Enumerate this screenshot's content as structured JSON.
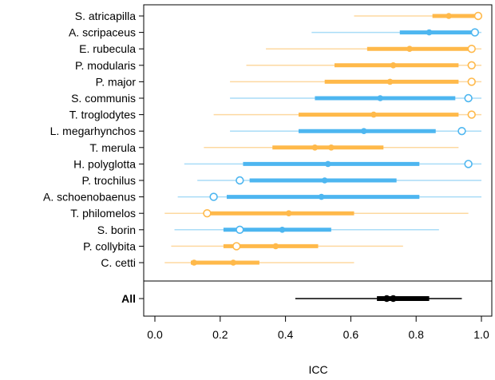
{
  "chart_data": {
    "type": "scatter",
    "xlabel": "ICC",
    "xlim": [
      0,
      1
    ],
    "x_ticks": [
      "0.0",
      "0.2",
      "0.4",
      "0.6",
      "0.8",
      "1.0"
    ],
    "colors": {
      "orange": "#FFB94A",
      "blue": "#4DB6F0",
      "black": "#000000"
    },
    "species": [
      {
        "name": "S. atricapilla",
        "color": "orange",
        "ci95": [
          0.61,
          1.0
        ],
        "ci50": [
          0.85,
          0.99
        ],
        "median": 0.9,
        "open": 0.99
      },
      {
        "name": "A. scripaceus",
        "color": "blue",
        "ci95": [
          0.48,
          1.0
        ],
        "ci50": [
          0.75,
          0.97
        ],
        "median": 0.84,
        "open": 0.98
      },
      {
        "name": "E. rubecula",
        "color": "orange",
        "ci95": [
          0.34,
          1.0
        ],
        "ci50": [
          0.65,
          0.96
        ],
        "median": 0.78,
        "open": 0.97
      },
      {
        "name": "P. modularis",
        "color": "orange",
        "ci95": [
          0.28,
          1.0
        ],
        "ci50": [
          0.55,
          0.93
        ],
        "median": 0.73,
        "open": 0.97
      },
      {
        "name": "P. major",
        "color": "orange",
        "ci95": [
          0.23,
          1.0
        ],
        "ci50": [
          0.52,
          0.93
        ],
        "median": 0.72,
        "open": 0.97
      },
      {
        "name": "S. communis",
        "color": "blue",
        "ci95": [
          0.23,
          1.0
        ],
        "ci50": [
          0.49,
          0.92
        ],
        "median": 0.69,
        "open": 0.96
      },
      {
        "name": "T. troglodytes",
        "color": "orange",
        "ci95": [
          0.18,
          1.0
        ],
        "ci50": [
          0.44,
          0.93
        ],
        "median": 0.67,
        "open": 0.97
      },
      {
        "name": "L. megarhynchos",
        "color": "blue",
        "ci95": [
          0.23,
          1.0
        ],
        "ci50": [
          0.44,
          0.86
        ],
        "median": 0.64,
        "open": 0.94
      },
      {
        "name": "T. merula",
        "color": "orange",
        "ci95": [
          0.15,
          0.93
        ],
        "ci50": [
          0.36,
          0.7
        ],
        "median": 0.54,
        "open": null,
        "extra_points": [
          0.49
        ]
      },
      {
        "name": "H. polyglotta",
        "color": "blue",
        "ci95": [
          0.09,
          1.0
        ],
        "ci50": [
          0.27,
          0.81
        ],
        "median": 0.53,
        "open": 0.96
      },
      {
        "name": "P. trochilus",
        "color": "blue",
        "ci95": [
          0.13,
          1.0
        ],
        "ci50": [
          0.29,
          0.74
        ],
        "median": 0.52,
        "open": 0.26
      },
      {
        "name": "A. schoenobaenus",
        "color": "blue",
        "ci95": [
          0.07,
          1.0
        ],
        "ci50": [
          0.22,
          0.81
        ],
        "median": 0.51,
        "open": 0.18
      },
      {
        "name": "T. philomelos",
        "color": "orange",
        "ci95": [
          0.03,
          0.96
        ],
        "ci50": [
          0.17,
          0.61
        ],
        "median": 0.41,
        "open": 0.16
      },
      {
        "name": "S. borin",
        "color": "blue",
        "ci95": [
          0.06,
          0.87
        ],
        "ci50": [
          0.21,
          0.54
        ],
        "median": 0.39,
        "open": 0.26
      },
      {
        "name": "P. collybita",
        "color": "orange",
        "ci95": [
          0.05,
          0.76
        ],
        "ci50": [
          0.21,
          0.5
        ],
        "median": 0.37,
        "open": 0.25,
        "extra_points": [
          0.25
        ]
      },
      {
        "name": "C. cetti",
        "color": "orange",
        "ci95": [
          0.03,
          0.61
        ],
        "ci50": [
          0.11,
          0.32
        ],
        "median": 0.24,
        "open": null,
        "extra_points": [
          0.12
        ]
      }
    ],
    "all": {
      "name": "All",
      "color": "black",
      "ci95": [
        0.43,
        0.94
      ],
      "ci50": [
        0.68,
        0.84
      ],
      "median": 0.73,
      "extra_points": [
        0.71
      ]
    }
  }
}
